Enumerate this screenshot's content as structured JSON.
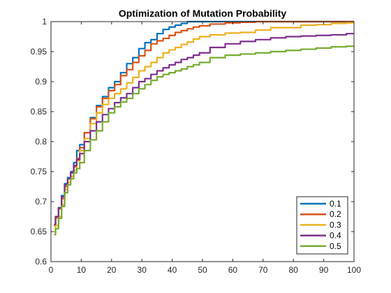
{
  "chart_data": {
    "type": "line",
    "title": "Optimization of Mutation Probability",
    "xlabel": "",
    "ylabel": "",
    "xlim": [
      0,
      100
    ],
    "ylim": [
      0.6,
      1.0
    ],
    "xticks": [
      0,
      10,
      20,
      30,
      40,
      50,
      60,
      70,
      80,
      90,
      100
    ],
    "yticks": [
      0.6,
      0.65,
      0.7,
      0.75,
      0.8,
      0.85,
      0.9,
      0.95,
      1.0
    ],
    "ytick_labels": [
      "0.6",
      "0.65",
      "0.7",
      "0.75",
      "0.8",
      "0.85",
      "0.9",
      "0.95",
      "1"
    ],
    "grid": false,
    "legend_position": "bottom-right",
    "series": [
      {
        "name": "0.1",
        "color": "#0072BD",
        "points": [
          [
            1,
            0.66
          ],
          [
            2,
            0.675
          ],
          [
            3,
            0.69
          ],
          [
            4,
            0.71
          ],
          [
            5,
            0.73
          ],
          [
            6,
            0.74
          ],
          [
            7,
            0.75
          ],
          [
            8,
            0.765
          ],
          [
            9,
            0.785
          ],
          [
            10,
            0.795
          ],
          [
            12,
            0.815
          ],
          [
            14,
            0.84
          ],
          [
            16,
            0.86
          ],
          [
            18,
            0.875
          ],
          [
            20,
            0.89
          ],
          [
            22,
            0.9
          ],
          [
            24,
            0.915
          ],
          [
            26,
            0.93
          ],
          [
            28,
            0.94
          ],
          [
            30,
            0.955
          ],
          [
            32,
            0.965
          ],
          [
            34,
            0.97
          ],
          [
            36,
            0.98
          ],
          [
            38,
            0.987
          ],
          [
            40,
            0.991
          ],
          [
            42,
            0.994
          ],
          [
            44,
            0.997
          ],
          [
            46,
            1.0
          ],
          [
            50,
            1.0
          ],
          [
            60,
            1.0
          ],
          [
            70,
            1.0
          ],
          [
            80,
            1.0
          ],
          [
            90,
            1.0
          ],
          [
            100,
            1.0
          ]
        ]
      },
      {
        "name": "0.2",
        "color": "#D95319",
        "points": [
          [
            1,
            0.66
          ],
          [
            2,
            0.673
          ],
          [
            3,
            0.688
          ],
          [
            4,
            0.705
          ],
          [
            5,
            0.725
          ],
          [
            6,
            0.738
          ],
          [
            7,
            0.748
          ],
          [
            8,
            0.758
          ],
          [
            9,
            0.772
          ],
          [
            10,
            0.79
          ],
          [
            12,
            0.815
          ],
          [
            14,
            0.838
          ],
          [
            16,
            0.858
          ],
          [
            18,
            0.872
          ],
          [
            20,
            0.885
          ],
          [
            22,
            0.895
          ],
          [
            24,
            0.91
          ],
          [
            26,
            0.92
          ],
          [
            28,
            0.932
          ],
          [
            30,
            0.943
          ],
          [
            32,
            0.952
          ],
          [
            34,
            0.963
          ],
          [
            36,
            0.968
          ],
          [
            38,
            0.972
          ],
          [
            40,
            0.977
          ],
          [
            42,
            0.982
          ],
          [
            44,
            0.985
          ],
          [
            46,
            0.988
          ],
          [
            48,
            0.991
          ],
          [
            50,
            0.993
          ],
          [
            55,
            0.996
          ],
          [
            60,
            0.998
          ],
          [
            65,
            0.999
          ],
          [
            70,
            1.0
          ],
          [
            80,
            1.0
          ],
          [
            90,
            1.0
          ],
          [
            100,
            1.0
          ]
        ]
      },
      {
        "name": "0.3",
        "color": "#EDB120",
        "points": [
          [
            1,
            0.65
          ],
          [
            2,
            0.66
          ],
          [
            3,
            0.675
          ],
          [
            4,
            0.695
          ],
          [
            5,
            0.72
          ],
          [
            6,
            0.732
          ],
          [
            7,
            0.742
          ],
          [
            8,
            0.752
          ],
          [
            9,
            0.768
          ],
          [
            10,
            0.785
          ],
          [
            12,
            0.805
          ],
          [
            14,
            0.83
          ],
          [
            16,
            0.848
          ],
          [
            18,
            0.862
          ],
          [
            20,
            0.872
          ],
          [
            22,
            0.88
          ],
          [
            24,
            0.888
          ],
          [
            26,
            0.898
          ],
          [
            28,
            0.907
          ],
          [
            30,
            0.918
          ],
          [
            32,
            0.925
          ],
          [
            34,
            0.932
          ],
          [
            36,
            0.94
          ],
          [
            38,
            0.948
          ],
          [
            40,
            0.953
          ],
          [
            42,
            0.957
          ],
          [
            44,
            0.962
          ],
          [
            46,
            0.966
          ],
          [
            48,
            0.971
          ],
          [
            50,
            0.975
          ],
          [
            55,
            0.978
          ],
          [
            60,
            0.981
          ],
          [
            65,
            0.982
          ],
          [
            70,
            0.986
          ],
          [
            75,
            0.99
          ],
          [
            80,
            0.99
          ],
          [
            85,
            0.994
          ],
          [
            90,
            0.995
          ],
          [
            95,
            0.997
          ],
          [
            100,
            0.998
          ]
        ]
      },
      {
        "name": "0.4",
        "color": "#7E2F8E",
        "points": [
          [
            1,
            0.662
          ],
          [
            2,
            0.675
          ],
          [
            3,
            0.69
          ],
          [
            4,
            0.708
          ],
          [
            5,
            0.728
          ],
          [
            6,
            0.738
          ],
          [
            7,
            0.748
          ],
          [
            8,
            0.76
          ],
          [
            9,
            0.77
          ],
          [
            10,
            0.78
          ],
          [
            12,
            0.8
          ],
          [
            14,
            0.818
          ],
          [
            16,
            0.833
          ],
          [
            18,
            0.845
          ],
          [
            20,
            0.855
          ],
          [
            22,
            0.865
          ],
          [
            24,
            0.873
          ],
          [
            26,
            0.88
          ],
          [
            28,
            0.89
          ],
          [
            30,
            0.9
          ],
          [
            32,
            0.905
          ],
          [
            34,
            0.912
          ],
          [
            36,
            0.918
          ],
          [
            38,
            0.923
          ],
          [
            40,
            0.928
          ],
          [
            42,
            0.932
          ],
          [
            44,
            0.937
          ],
          [
            46,
            0.94
          ],
          [
            48,
            0.944
          ],
          [
            50,
            0.948
          ],
          [
            55,
            0.957
          ],
          [
            60,
            0.963
          ],
          [
            65,
            0.967
          ],
          [
            70,
            0.97
          ],
          [
            75,
            0.973
          ],
          [
            80,
            0.975
          ],
          [
            85,
            0.976
          ],
          [
            90,
            0.977
          ],
          [
            95,
            0.978
          ],
          [
            100,
            0.98
          ]
        ]
      },
      {
        "name": "0.5",
        "color": "#77AC30",
        "points": [
          [
            1,
            0.645
          ],
          [
            2,
            0.655
          ],
          [
            3,
            0.672
          ],
          [
            4,
            0.692
          ],
          [
            5,
            0.715
          ],
          [
            6,
            0.728
          ],
          [
            7,
            0.738
          ],
          [
            8,
            0.748
          ],
          [
            9,
            0.755
          ],
          [
            10,
            0.765
          ],
          [
            12,
            0.785
          ],
          [
            14,
            0.803
          ],
          [
            16,
            0.818
          ],
          [
            18,
            0.833
          ],
          [
            20,
            0.848
          ],
          [
            22,
            0.858
          ],
          [
            24,
            0.866
          ],
          [
            26,
            0.872
          ],
          [
            28,
            0.88
          ],
          [
            30,
            0.888
          ],
          [
            32,
            0.895
          ],
          [
            34,
            0.902
          ],
          [
            36,
            0.908
          ],
          [
            38,
            0.912
          ],
          [
            40,
            0.915
          ],
          [
            42,
            0.918
          ],
          [
            44,
            0.921
          ],
          [
            46,
            0.925
          ],
          [
            48,
            0.928
          ],
          [
            50,
            0.932
          ],
          [
            55,
            0.94
          ],
          [
            60,
            0.944
          ],
          [
            65,
            0.946
          ],
          [
            70,
            0.948
          ],
          [
            75,
            0.95
          ],
          [
            80,
            0.952
          ],
          [
            85,
            0.954
          ],
          [
            90,
            0.956
          ],
          [
            95,
            0.958
          ],
          [
            100,
            0.959
          ]
        ]
      }
    ]
  }
}
